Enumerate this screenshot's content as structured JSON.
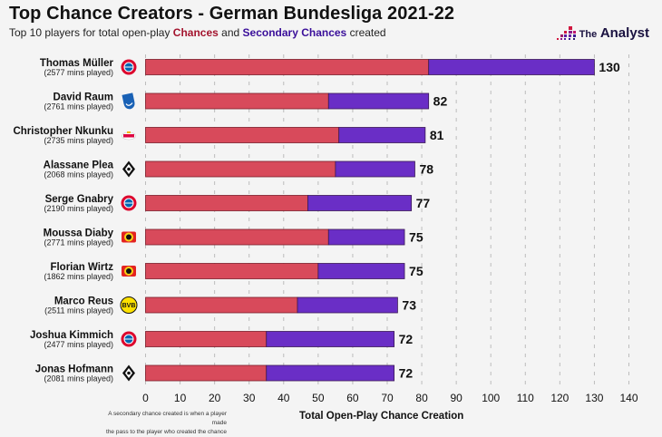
{
  "header": {
    "title": "Top Chance Creators - German Bundesliga 2021-22",
    "subtitle_prefix": "Top 10 players for total open-play ",
    "subtitle_chances": "Chances",
    "subtitle_mid": " and ",
    "subtitle_secondary": "Secondary Chances",
    "subtitle_suffix": " created",
    "logo_the": "The",
    "logo_name": "Analyst"
  },
  "colors": {
    "chances": "#d84a5b",
    "secondary": "#6a2ec6",
    "border": "#3b1a55",
    "chances_text": "#a3142e",
    "secondary_text": "#3a0f9a"
  },
  "footnote": {
    "line1": "A secondary chance created is when a player made",
    "line2": "the pass to the player who created the chance"
  },
  "chart_data": {
    "type": "bar",
    "orientation": "horizontal",
    "stacked": true,
    "title": "Top Chance Creators - German Bundesliga 2021-22",
    "subtitle": "Top 10 players for total open-play Chances and Secondary Chances created",
    "xlabel": "Total Open-Play Chance Creation",
    "ylabel": "",
    "xlim": [
      0,
      140
    ],
    "xticks": [
      0,
      10,
      20,
      30,
      40,
      50,
      60,
      70,
      80,
      90,
      100,
      110,
      120,
      130,
      140
    ],
    "grid": "vertical dashed",
    "legend": "in subtitle",
    "categories": [
      "Thomas Müller",
      "David Raum",
      "Christopher Nkunku",
      "Alassane Plea",
      "Serge Gnabry",
      "Moussa Diaby",
      "Florian Wirtz",
      "Marco Reus",
      "Joshua Kimmich",
      "Jonas Hofmann"
    ],
    "minutes": [
      "(2577 mins played)",
      "(2761 mins played)",
      "(2735 mins played)",
      "(2068 mins played)",
      "(2190 mins played)",
      "(2771 mins played)",
      "(1862 mins played)",
      "(2511 mins played)",
      "(2477 mins played)",
      "(2081 mins played)"
    ],
    "teams": [
      "Bayern Munich",
      "Hoffenheim",
      "RB Leipzig",
      "Borussia Mönchengladbach",
      "Bayern Munich",
      "Bayer Leverkusen",
      "Bayer Leverkusen",
      "Borussia Dortmund",
      "Bayern Munich",
      "Borussia Mönchengladbach"
    ],
    "series": [
      {
        "name": "Chances",
        "values": [
          82,
          53,
          56,
          55,
          47,
          53,
          50,
          44,
          35,
          35
        ]
      },
      {
        "name": "Secondary Chances",
        "values": [
          48,
          29,
          25,
          23,
          30,
          22,
          25,
          29,
          37,
          37
        ]
      }
    ],
    "totals": [
      130,
      82,
      81,
      78,
      77,
      75,
      75,
      73,
      72,
      72
    ]
  }
}
